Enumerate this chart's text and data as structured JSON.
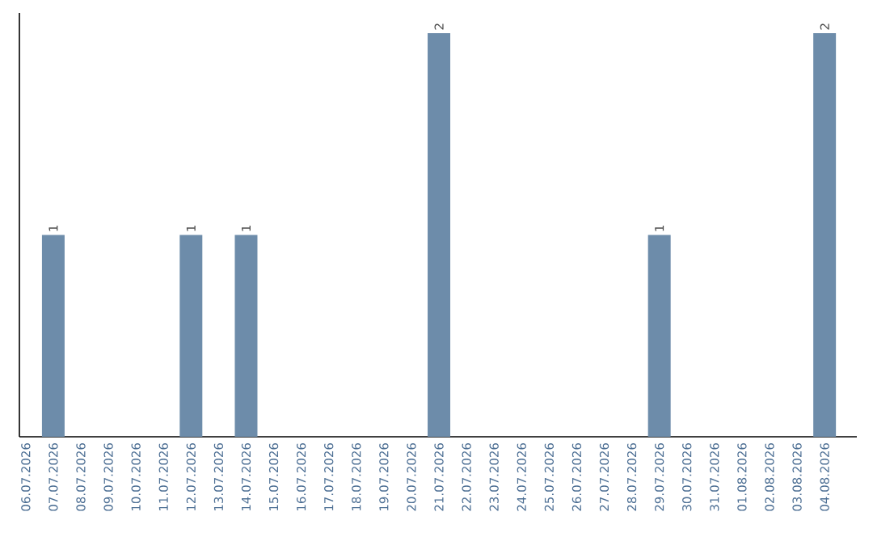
{
  "chart_data": {
    "type": "bar",
    "categories": [
      "06.07.2026",
      "07.07.2026",
      "08.07.2026",
      "09.07.2026",
      "10.07.2026",
      "11.07.2026",
      "12.07.2026",
      "13.07.2026",
      "14.07.2026",
      "15.07.2026",
      "16.07.2026",
      "17.07.2026",
      "18.07.2026",
      "19.07.2026",
      "20.07.2026",
      "21.07.2026",
      "22.07.2026",
      "23.07.2026",
      "24.07.2026",
      "25.07.2026",
      "26.07.2026",
      "27.07.2026",
      "28.07.2026",
      "29.07.2026",
      "30.07.2026",
      "31.07.2026",
      "01.08.2026",
      "02.08.2026",
      "03.08.2026",
      "04.08.2026"
    ],
    "values": [
      0,
      1,
      0,
      0,
      0,
      0,
      1,
      0,
      1,
      0,
      0,
      0,
      0,
      0,
      0,
      2,
      0,
      0,
      0,
      0,
      0,
      0,
      0,
      1,
      0,
      0,
      0,
      0,
      0,
      2
    ],
    "value_labels": [
      null,
      "1",
      null,
      null,
      null,
      null,
      "1",
      null,
      "1",
      null,
      null,
      null,
      null,
      null,
      null,
      "2",
      null,
      null,
      null,
      null,
      null,
      null,
      null,
      "1",
      null,
      null,
      null,
      null,
      null,
      "2"
    ],
    "color": "#6d8caa"
  }
}
